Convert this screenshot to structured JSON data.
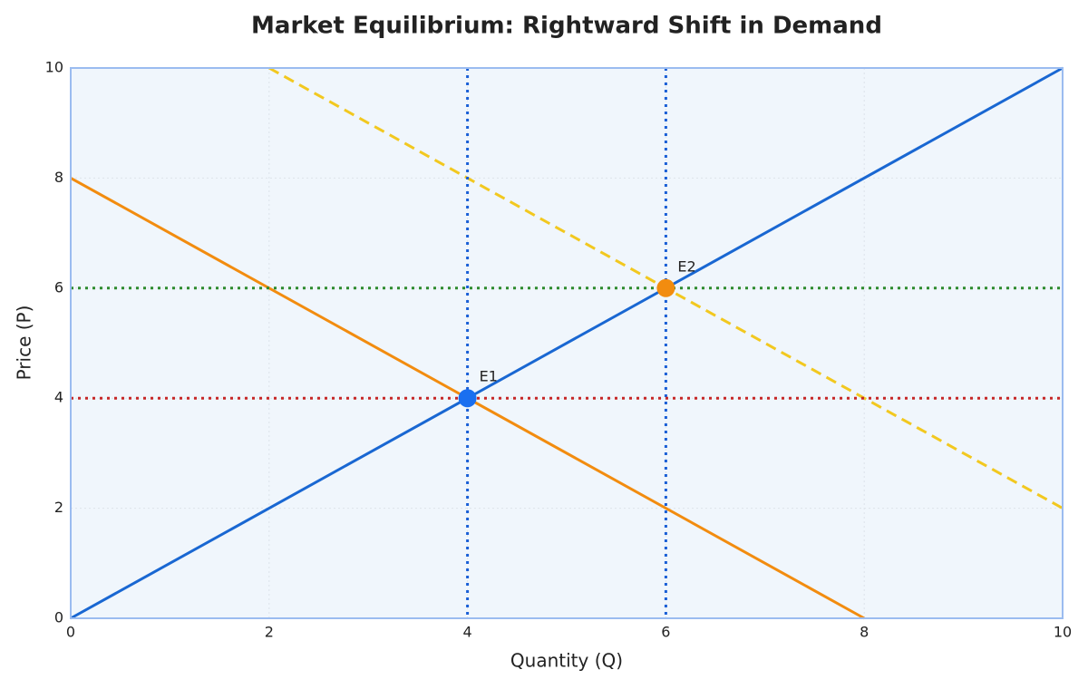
{
  "chart_data": {
    "type": "line",
    "title": "Market Equilibrium: Rightward Shift in Demand",
    "xlabel": "Quantity (Q)",
    "ylabel": "Price (P)",
    "xlim": [
      0,
      10
    ],
    "ylim": [
      0,
      10
    ],
    "xticks": [
      0,
      2,
      4,
      6,
      8,
      10
    ],
    "yticks": [
      0,
      2,
      4,
      6,
      8,
      10
    ],
    "grid": true,
    "series": [
      {
        "color": "#1967d2",
        "dash": "solid",
        "x": [
          0,
          10
        ],
        "values": [
          0,
          10
        ]
      },
      {
        "color": "#f28c0f",
        "dash": "solid",
        "x": [
          0,
          8
        ],
        "values": [
          8,
          0
        ]
      },
      {
        "color": "#f2c81f",
        "dash": "dashed",
        "x": [
          2,
          10
        ],
        "values": [
          10,
          2
        ]
      }
    ],
    "vlines": [
      {
        "value": 4,
        "color": "#1a5fd6"
      },
      {
        "value": 6,
        "color": "#1a5fd6"
      }
    ],
    "hlines": [
      {
        "value": 4,
        "color": "#c62828"
      },
      {
        "value": 6,
        "color": "#2e8b2e"
      }
    ],
    "points": [
      {
        "x": 4,
        "y": 4,
        "label": "E1",
        "color": "#1a6ff0"
      },
      {
        "x": 6,
        "y": 6,
        "label": "E2",
        "color": "#f28c0f"
      }
    ]
  }
}
